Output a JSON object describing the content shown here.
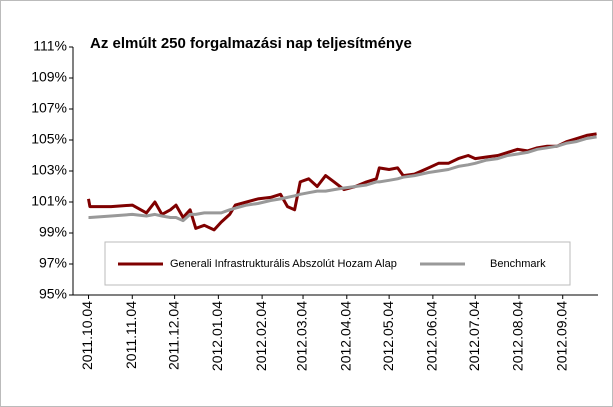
{
  "chart_data": {
    "type": "line",
    "title": "Az elmúlt 250 forgalmazási nap teljesítménye",
    "x": [
      "2011.10.04",
      "2011.10.05",
      "2011.10.20",
      "2011.11.04",
      "2011.11.14",
      "2011.11.20",
      "2011.11.25",
      "2011.12.01",
      "2011.12.05",
      "2011.12.10",
      "2011.12.15",
      "2011.12.19",
      "2011.12.25",
      "2012.01.01",
      "2012.01.06",
      "2012.01.12",
      "2012.01.16",
      "2012.01.24",
      "2012.02.01",
      "2012.02.10",
      "2012.02.17",
      "2012.02.22",
      "2012.02.27",
      "2012.03.02",
      "2012.03.08",
      "2012.03.14",
      "2012.03.20",
      "2012.03.26",
      "2012.04.02",
      "2012.04.10",
      "2012.04.18",
      "2012.04.25",
      "2012.04.27",
      "2012.05.04",
      "2012.05.10",
      "2012.05.14",
      "2012.05.22",
      "2012.06.01",
      "2012.06.08",
      "2012.06.15",
      "2012.06.22",
      "2012.06.29",
      "2012.07.04",
      "2012.07.12",
      "2012.07.20",
      "2012.07.27",
      "2012.08.03",
      "2012.08.10",
      "2012.08.17",
      "2012.08.24",
      "2012.08.31",
      "2012.09.07",
      "2012.09.14",
      "2012.09.21",
      "2012.09.28"
    ],
    "series": [
      {
        "name": "Generali Infrastrukturális Abszolút Hozam Alap",
        "color": "#7f0000",
        "values": [
          101.2,
          100.7,
          100.7,
          100.8,
          100.3,
          101.0,
          100.2,
          100.5,
          100.8,
          100.0,
          100.5,
          99.3,
          99.5,
          99.2,
          99.7,
          100.2,
          100.8,
          101.0,
          101.2,
          101.3,
          101.5,
          100.7,
          100.5,
          102.3,
          102.5,
          102.0,
          102.7,
          102.3,
          101.8,
          102.0,
          102.3,
          102.5,
          103.2,
          103.1,
          103.2,
          102.7,
          102.8,
          103.2,
          103.5,
          103.5,
          103.8,
          104.0,
          103.8,
          103.9,
          104.0,
          104.2,
          104.4,
          104.3,
          104.5,
          104.6,
          104.6,
          104.9,
          105.1,
          105.3,
          105.4
        ]
      },
      {
        "name": "Benchmark",
        "color": "#999999",
        "values": [
          100.0,
          100.0,
          100.1,
          100.2,
          100.1,
          100.2,
          100.1,
          100.0,
          100.0,
          99.8,
          100.2,
          100.2,
          100.3,
          100.3,
          100.3,
          100.5,
          100.6,
          100.8,
          100.9,
          101.1,
          101.2,
          101.3,
          101.4,
          101.5,
          101.6,
          101.7,
          101.7,
          101.8,
          101.9,
          102.0,
          102.1,
          102.3,
          102.3,
          102.4,
          102.5,
          102.6,
          102.7,
          102.9,
          103.0,
          103.1,
          103.3,
          103.4,
          103.5,
          103.7,
          103.8,
          104.0,
          104.1,
          104.2,
          104.4,
          104.5,
          104.6,
          104.8,
          104.9,
          105.1,
          105.2
        ]
      }
    ],
    "xlim": [
      "2011.09.23",
      "2012.09.29"
    ],
    "xticks": [
      "2011.10.04",
      "2011.11.04",
      "2011.12.04",
      "2012.01.04",
      "2012.02.04",
      "2012.03.04",
      "2012.04.04",
      "2012.05.04",
      "2012.06.04",
      "2012.07.04",
      "2012.08.04",
      "2012.09.04"
    ],
    "ylim": [
      95,
      111
    ],
    "yticks": [
      {
        "value": 95,
        "label": "95%"
      },
      {
        "value": 97,
        "label": "97%"
      },
      {
        "value": 99,
        "label": "99%"
      },
      {
        "value": 101,
        "label": "101%"
      },
      {
        "value": 103,
        "label": "103%"
      },
      {
        "value": 105,
        "label": "105%"
      },
      {
        "value": 107,
        "label": "107%"
      },
      {
        "value": 109,
        "label": "109%"
      },
      {
        "value": 111,
        "label": "111%"
      }
    ],
    "grid": false,
    "legend": "bottom"
  }
}
